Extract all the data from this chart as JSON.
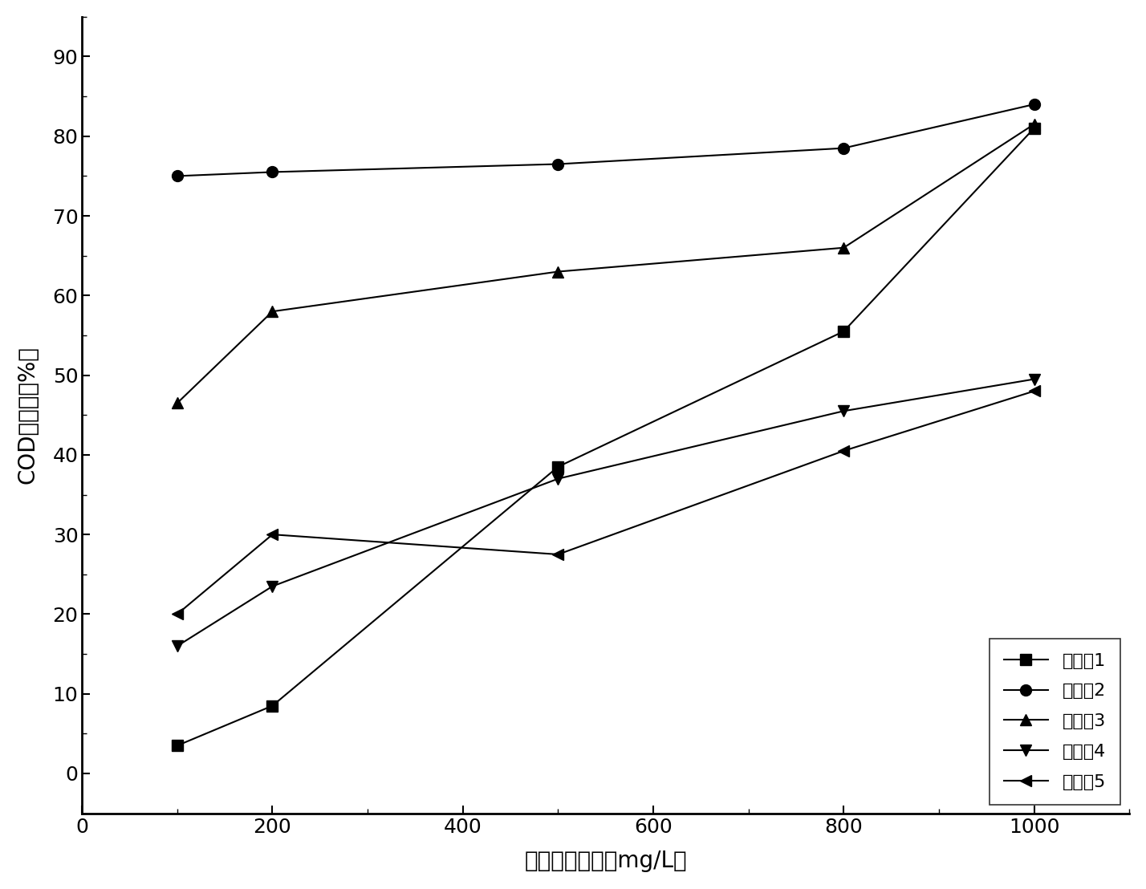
{
  "x": [
    100,
    200,
    500,
    800,
    1000
  ],
  "series": [
    {
      "label": "实验组1",
      "y": [
        3.5,
        8.5,
        38.5,
        55.5,
        81.0
      ],
      "marker": "s",
      "color": "#000000"
    },
    {
      "label": "实验组2",
      "y": [
        75.0,
        75.5,
        76.5,
        78.5,
        84.0
      ],
      "marker": "o",
      "color": "#000000"
    },
    {
      "label": "实验组3",
      "y": [
        46.5,
        58.0,
        63.0,
        66.0,
        81.5
      ],
      "marker": "^",
      "color": "#000000"
    },
    {
      "label": "实验组4",
      "y": [
        16.0,
        23.5,
        37.0,
        45.5,
        49.5
      ],
      "marker": "v",
      "color": "#000000"
    },
    {
      "label": "实验组5",
      "y": [
        20.0,
        30.0,
        27.5,
        40.5,
        48.0
      ],
      "marker": "<",
      "color": "#000000"
    }
  ],
  "xlabel": "絮凝剂投加量（mg/L）",
  "ylabel": "COD去除率（%）",
  "xlim": [
    0,
    1100
  ],
  "ylim": [
    -5,
    95
  ],
  "xticks": [
    0,
    200,
    400,
    600,
    800,
    1000
  ],
  "yticks": [
    0,
    10,
    20,
    30,
    40,
    50,
    60,
    70,
    80,
    90
  ],
  "background_color": "#ffffff",
  "marker_size": 10,
  "linewidth": 1.5
}
